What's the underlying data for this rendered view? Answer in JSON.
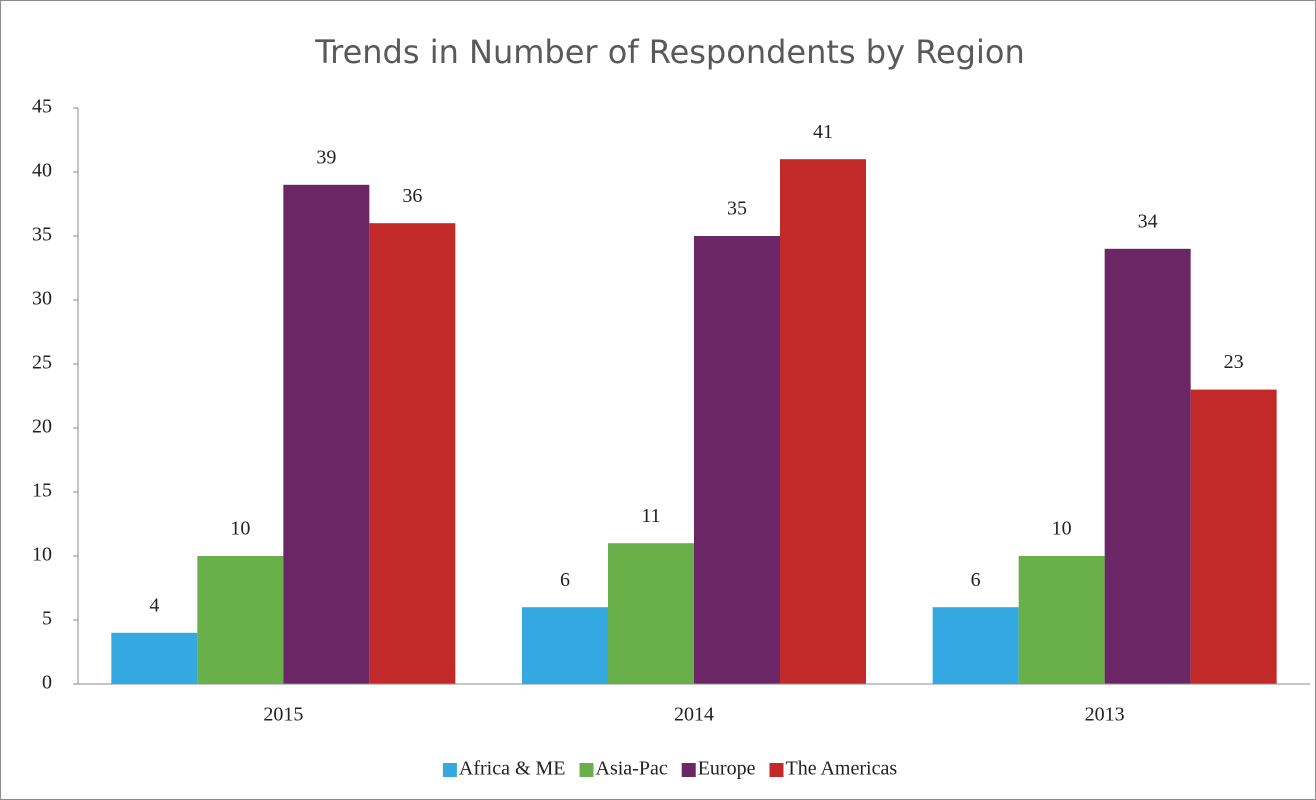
{
  "chart_data": {
    "type": "bar",
    "title": "Trends in Number of Respondents by Region",
    "categories": [
      "2015",
      "2014",
      "2013"
    ],
    "series": [
      {
        "name": "Africa & ME",
        "color": "#34a8e0",
        "values": [
          4,
          6,
          6
        ]
      },
      {
        "name": "Asia-Pac",
        "color": "#6ab04a",
        "values": [
          10,
          11,
          10
        ]
      },
      {
        "name": "Europe",
        "color": "#6b2665",
        "values": [
          39,
          35,
          34
        ]
      },
      {
        "name": "The Americas",
        "color": "#c22a2a",
        "values": [
          36,
          41,
          23
        ]
      }
    ],
    "ylim": [
      0,
      45
    ],
    "yticks": [
      0,
      5,
      10,
      15,
      20,
      25,
      30,
      35,
      40,
      45
    ],
    "grid": false,
    "legend": "bottom"
  }
}
